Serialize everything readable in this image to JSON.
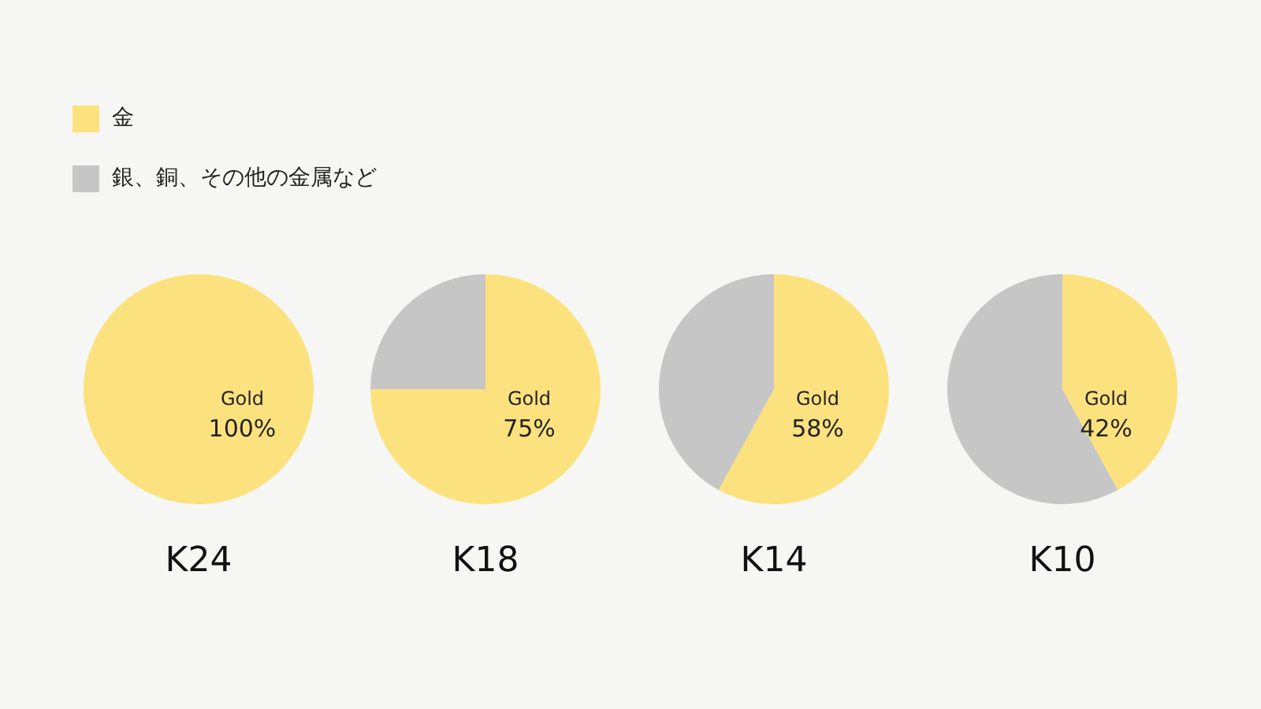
{
  "chart_data": [
    {
      "type": "pie",
      "title": "K24",
      "categories": [
        "金",
        "銀、銅、その他の金属など"
      ],
      "values": [
        100,
        0
      ],
      "colors": [
        "#fce27e",
        "#c6c6c6"
      ],
      "value_labels": [
        "Gold\n100%",
        null
      ],
      "legend": "top"
    },
    {
      "type": "pie",
      "title": "K18",
      "categories": [
        null,
        null
      ],
      "values": [
        75,
        25
      ],
      "colors": [
        "#fce27e",
        "#c6c6c6"
      ],
      "value_labels": [
        "Gold\n75%",
        null
      ]
    },
    {
      "type": "pie",
      "title": "K14",
      "categories": [
        null,
        null
      ],
      "values": [
        58,
        42
      ],
      "colors": [
        "#fce27e",
        "#c6c6c6"
      ],
      "value_labels": [
        "Gold\n58%",
        null
      ]
    },
    {
      "type": "pie",
      "title": "K10",
      "categories": [
        null,
        null
      ],
      "values": [
        42,
        58
      ],
      "colors": [
        "#fce27e",
        "#c6c6c6"
      ],
      "value_labels": [
        "Gold\n42%",
        null
      ]
    }
  ]
}
